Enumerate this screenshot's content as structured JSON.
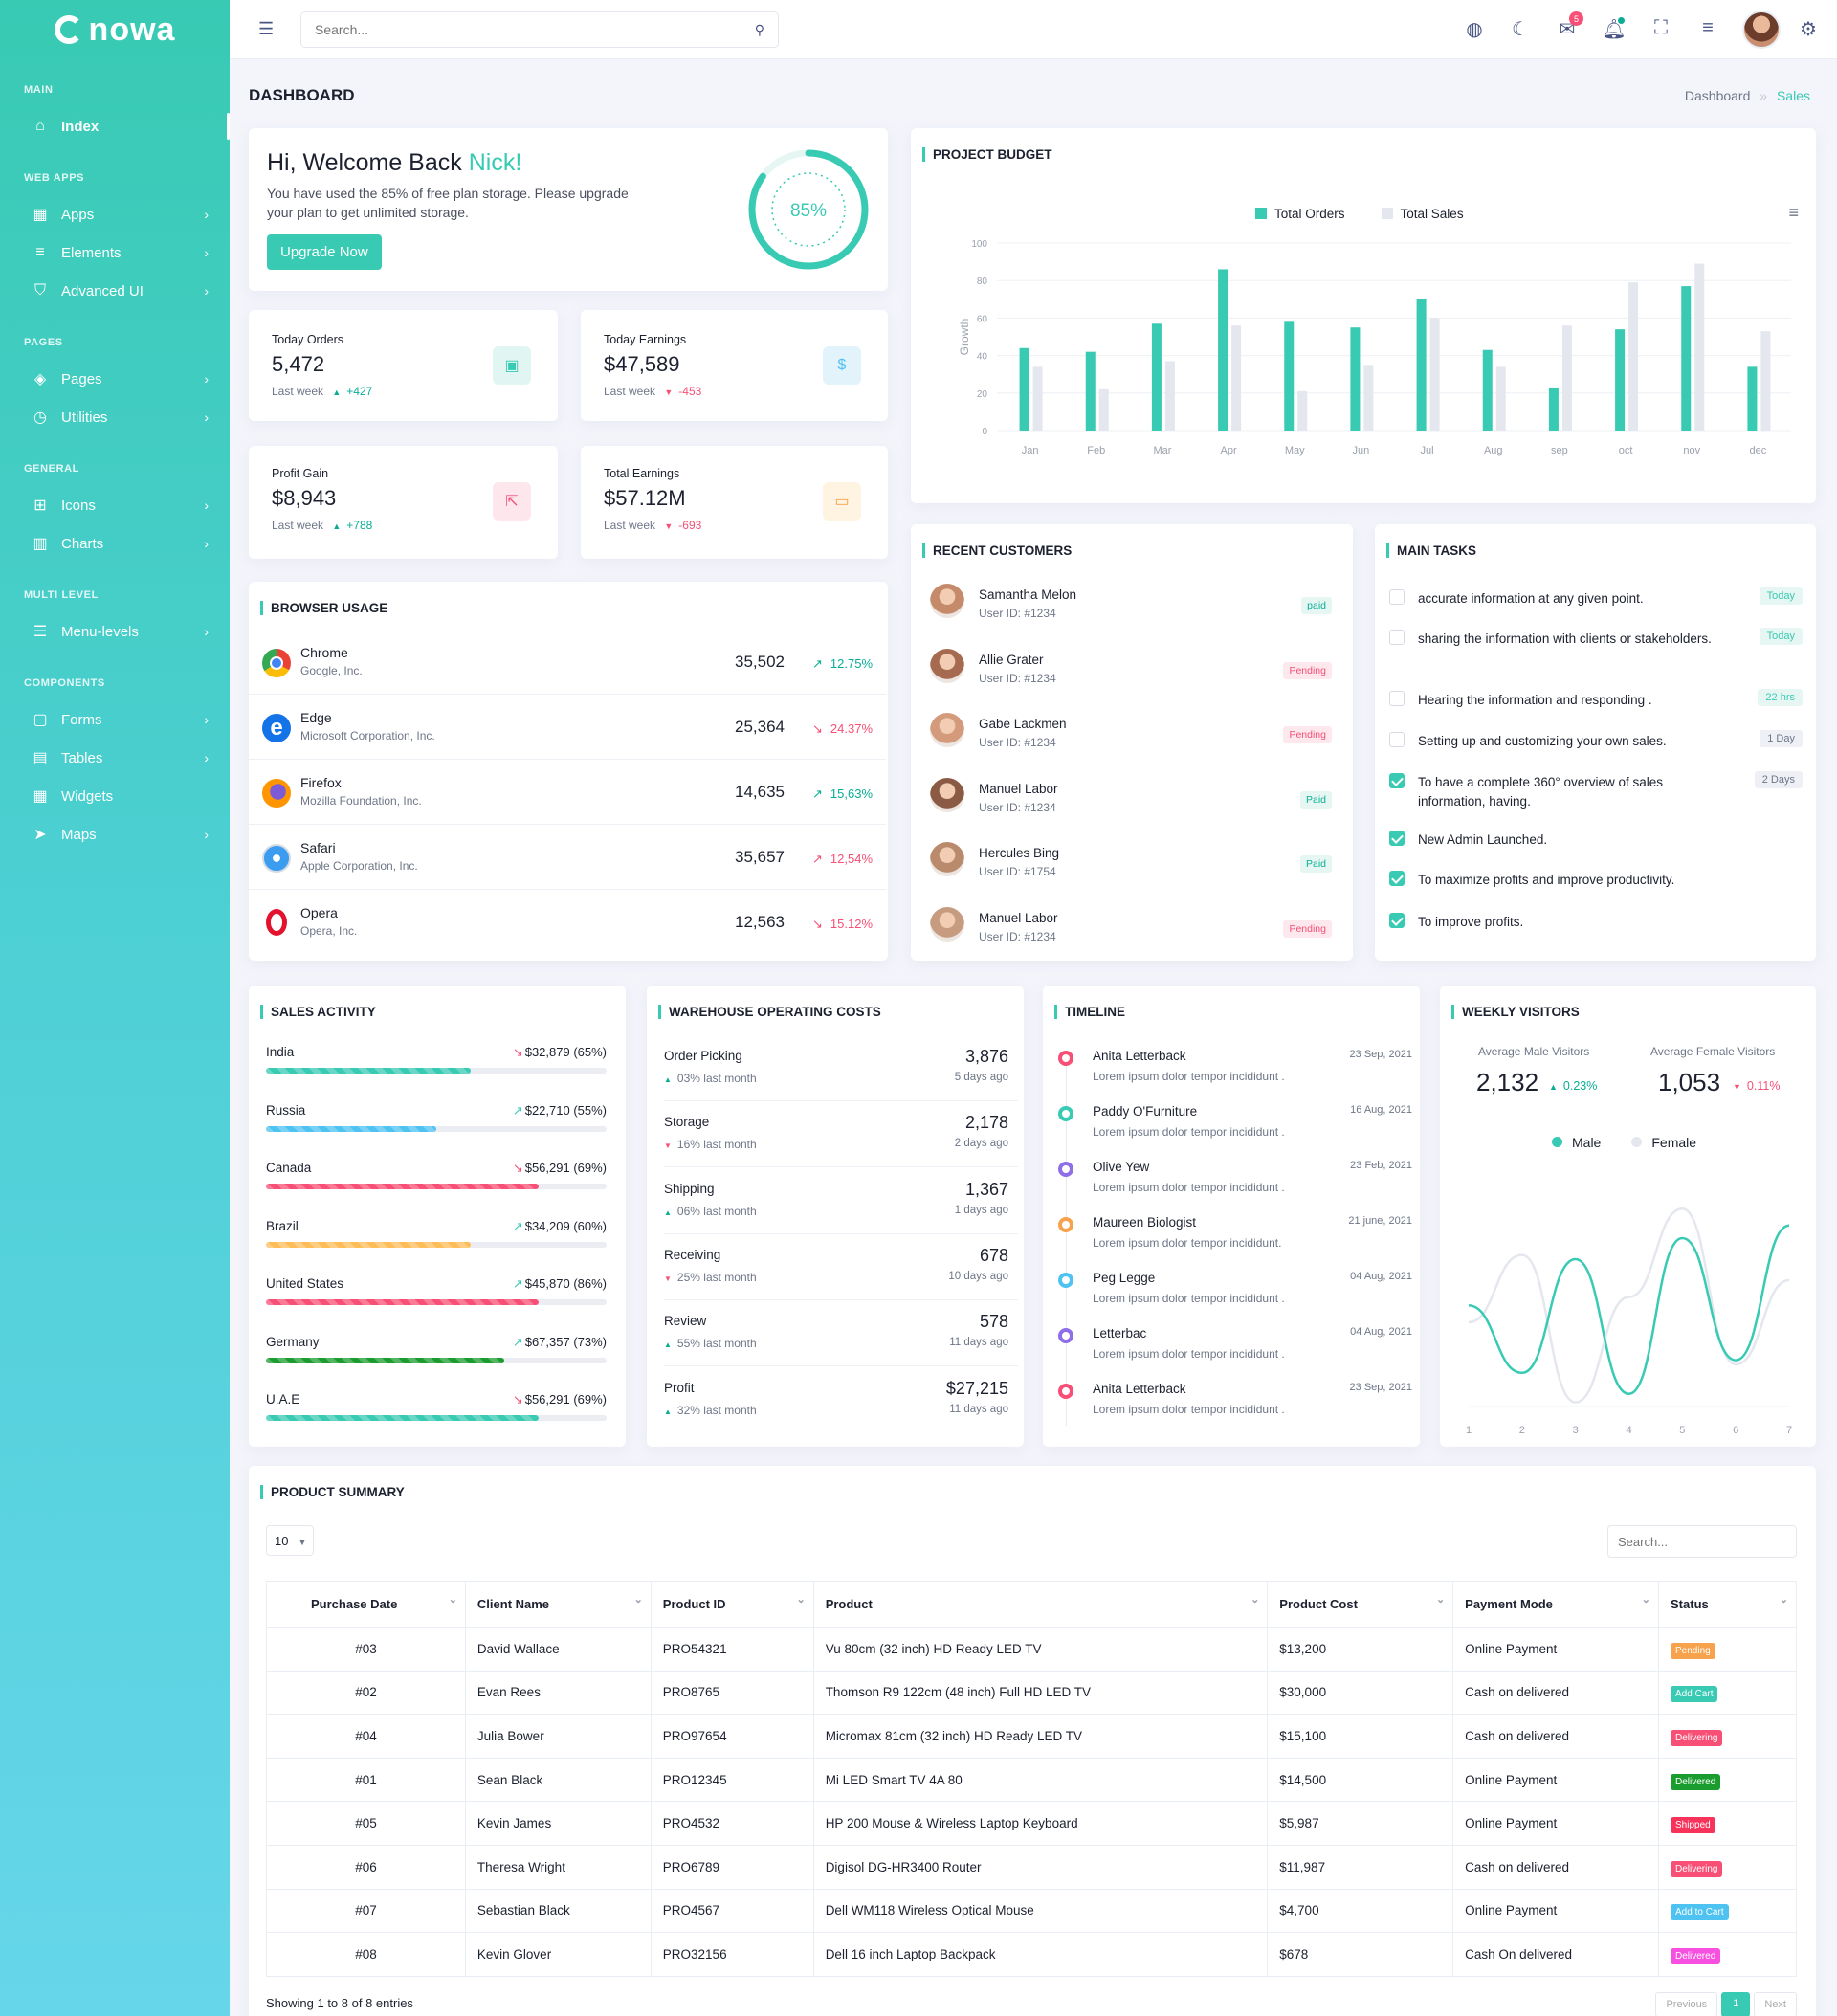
{
  "app": {
    "logo_text": "nowa"
  },
  "sidebar": {
    "categories": [
      "MAIN",
      "WEB APPS",
      "PAGES",
      "GENERAL",
      "MULTI LEVEL",
      "COMPONENTS"
    ],
    "items": [
      {
        "label": "Index"
      },
      {
        "label": "Apps"
      },
      {
        "label": "Elements"
      },
      {
        "label": "Advanced UI"
      },
      {
        "label": "Pages"
      },
      {
        "label": "Utilities"
      },
      {
        "label": "Icons"
      },
      {
        "label": "Charts"
      },
      {
        "label": "Menu-levels"
      },
      {
        "label": "Forms"
      },
      {
        "label": "Tables"
      },
      {
        "label": "Widgets"
      },
      {
        "label": "Maps"
      }
    ]
  },
  "header": {
    "search_placeholder": "Search...",
    "notification_count": "5"
  },
  "page": {
    "title": "DASHBOARD",
    "breadcrumb": [
      "Dashboard",
      "Sales"
    ]
  },
  "welcome": {
    "greeting": "Hi, Welcome Back ",
    "name": "Nick!",
    "message": "You have used the 85% of free plan storage. Please upgrade your plan to get unlimited storage.",
    "button": "Upgrade Now",
    "progress_label": "85%",
    "progress_value": 0.85
  },
  "stats": [
    {
      "label": "Today Orders",
      "value": "5,472",
      "period": "Last week",
      "change": "+427",
      "direction": "up"
    },
    {
      "label": "Today Earnings",
      "value": "$47,589",
      "period": "Last week",
      "change": "-453",
      "direction": "down"
    },
    {
      "label": "Profit Gain",
      "value": "$8,943",
      "period": "Last week",
      "change": "+788",
      "direction": "up"
    },
    {
      "label": "Total Earnings",
      "value": "$57.12M",
      "period": "Last week",
      "change": "-693",
      "direction": "down"
    }
  ],
  "browser_usage": {
    "title": "BROWSER USAGE",
    "rows": [
      {
        "name": "Chrome",
        "company": "Google, Inc.",
        "value": "35,502",
        "pct": "12.75%",
        "trend": "up"
      },
      {
        "name": "Edge",
        "company": "Microsoft Corporation, Inc.",
        "value": "25,364",
        "pct": "24.37%",
        "trend": "down"
      },
      {
        "name": "Firefox",
        "company": "Mozilla Foundation, Inc.",
        "value": "14,635",
        "pct": "15,63%",
        "trend": "up"
      },
      {
        "name": "Safari",
        "company": "Apple Corporation, Inc.",
        "value": "35,657",
        "pct": "12,54%",
        "trend": "up"
      },
      {
        "name": "Opera",
        "company": "Opera, Inc.",
        "value": "12,563",
        "pct": "15.12%",
        "trend": "down"
      }
    ]
  },
  "project_budget": {
    "title": "PROJECT BUDGET",
    "legend": [
      "Total Orders",
      "Total Sales"
    ],
    "ylabel": "Growth"
  },
  "chart_data": [
    {
      "type": "bar",
      "categories": [
        "Jan",
        "Feb",
        "Mar",
        "Apr",
        "May",
        "Jun",
        "Jul",
        "Aug",
        "sep",
        "oct",
        "nov",
        "dec"
      ],
      "series": [
        {
          "name": "Total Orders",
          "values": [
            44,
            42,
            57,
            86,
            58,
            55,
            70,
            43,
            23,
            54,
            77,
            34
          ]
        },
        {
          "name": "Total Sales",
          "values": [
            34,
            22,
            37,
            56,
            21,
            35,
            60,
            34,
            56,
            79,
            89,
            53
          ]
        }
      ],
      "ylabel": "Growth",
      "ylim": [
        0,
        100
      ],
      "yticks": [
        0,
        20,
        40,
        60,
        80,
        100
      ],
      "colors": [
        "#38cab3",
        "#e4e7ed"
      ],
      "legend_position": "top-center"
    },
    {
      "type": "line",
      "x": [
        1,
        2,
        3,
        4,
        5,
        6,
        7
      ],
      "series": [
        {
          "name": "Male",
          "values": [
            1.2,
            0.4,
            1.75,
            0.15,
            2.0,
            0.55,
            2.15
          ]
        },
        {
          "name": "Female",
          "values": [
            1.0,
            1.8,
            0.05,
            1.3,
            2.35,
            0.5,
            1.5
          ]
        }
      ],
      "colors": [
        "#38cab3",
        "#e4e7ed"
      ],
      "legend_position": "top-center"
    }
  ],
  "recent_customers": {
    "title": "RECENT CUSTOMERS",
    "rows": [
      {
        "name": "Samantha Melon",
        "uid": "User ID: #1234",
        "status": "paid",
        "kind": "paid"
      },
      {
        "name": "Allie Grater",
        "uid": "User ID: #1234",
        "status": "Pending",
        "kind": "pend"
      },
      {
        "name": "Gabe Lackmen",
        "uid": "User ID: #1234",
        "status": "Pending",
        "kind": "pend"
      },
      {
        "name": "Manuel Labor",
        "uid": "User ID: #1234",
        "status": "Paid",
        "kind": "paid"
      },
      {
        "name": "Hercules Bing",
        "uid": "User ID: #1754",
        "status": "Paid",
        "kind": "paid"
      },
      {
        "name": "Manuel Labor",
        "uid": "User ID: #1234",
        "status": "Pending",
        "kind": "pend"
      }
    ]
  },
  "main_tasks": {
    "title": "MAIN TASKS",
    "rows": [
      {
        "text": "accurate information at any given point.",
        "due": "Today",
        "checked": false,
        "green": true
      },
      {
        "text": "sharing the information with clients or stakeholders.",
        "due": "Today",
        "checked": false,
        "green": true
      },
      {
        "text": "Hearing the information and responding .",
        "due": "22 hrs",
        "checked": false,
        "green": true
      },
      {
        "text": "Setting up and customizing your own sales.",
        "due": "1 Day",
        "checked": false,
        "green": false
      },
      {
        "text": "To have a complete 360° overview of sales information, having.",
        "due": "2 Days",
        "checked": true,
        "green": false
      },
      {
        "text": "New Admin Launched.",
        "due": "",
        "checked": true,
        "green": false
      },
      {
        "text": "To maximize profits and improve productivity.",
        "due": "",
        "checked": true,
        "green": false
      },
      {
        "text": "To improve profits.",
        "due": "",
        "checked": true,
        "green": false
      }
    ]
  },
  "sales_activity": {
    "title": "SALES ACTIVITY",
    "rows": [
      {
        "country": "India",
        "value": "$32,879 (65%)",
        "pct": 0.6,
        "color": "#38cab3",
        "trend": "down"
      },
      {
        "country": "Russia",
        "value": "$22,710 (55%)",
        "pct": 0.5,
        "color": "#4ec2f0",
        "trend": "up"
      },
      {
        "country": "Canada",
        "value": "$56,291 (69%)",
        "pct": 0.8,
        "color": "#f74f75",
        "trend": "down"
      },
      {
        "country": "Brazil",
        "value": "$34,209 (60%)",
        "pct": 0.6,
        "color": "#ffbd5a",
        "trend": "up"
      },
      {
        "country": "United States",
        "value": "$45,870 (86%)",
        "pct": 0.8,
        "color": "#f74f75",
        "trend": "up"
      },
      {
        "country": "Germany",
        "value": "$67,357 (73%)",
        "pct": 0.7,
        "color": "#1a9c2e",
        "trend": "up"
      },
      {
        "country": "U.A.E",
        "value": "$56,291 (69%)",
        "pct": 0.8,
        "color": "#38cab3",
        "trend": "down"
      }
    ]
  },
  "warehouse": {
    "title": "WAREHOUSE OPERATING COSTS",
    "rows": [
      {
        "name": "Order Picking",
        "sub": "03% last month",
        "trend": "up",
        "value": "3,876",
        "ago": "5 days ago"
      },
      {
        "name": "Storage",
        "sub": "16% last month",
        "trend": "down",
        "value": "2,178",
        "ago": "2 days ago"
      },
      {
        "name": "Shipping",
        "sub": "06% last month",
        "trend": "up",
        "value": "1,367",
        "ago": "1 days ago"
      },
      {
        "name": "Receiving",
        "sub": "25% last month",
        "trend": "down",
        "value": "678",
        "ago": "10 days ago"
      },
      {
        "name": "Review",
        "sub": "55% last month",
        "trend": "up",
        "value": "578",
        "ago": "11 days ago"
      },
      {
        "name": "Profit",
        "sub": "32% last month",
        "trend": "up",
        "value": "$27,215",
        "ago": "11 days ago"
      }
    ]
  },
  "timeline": {
    "title": "TIMELINE",
    "rows": [
      {
        "name": "Anita Letterback",
        "desc": "Lorem ipsum dolor tempor incididunt .",
        "date": "23 Sep, 2021",
        "color": "#f74f75"
      },
      {
        "name": "Paddy O'Furniture",
        "desc": "Lorem ipsum dolor tempor incididunt .",
        "date": "16 Aug, 2021",
        "color": "#38cab3"
      },
      {
        "name": "Olive Yew",
        "desc": "Lorem ipsum dolor tempor incididunt .",
        "date": "23 Feb, 2021",
        "color": "#8f6ee8"
      },
      {
        "name": "Maureen Biologist",
        "desc": "Lorem ipsum dolor tempor incididunt.",
        "date": "21 june, 2021",
        "color": "#f7a24d"
      },
      {
        "name": "Peg Legge",
        "desc": "Lorem ipsum dolor tempor incididunt .",
        "date": "04 Aug, 2021",
        "color": "#4ec2f0"
      },
      {
        "name": "Letterbac",
        "desc": "Lorem ipsum dolor tempor incididunt .",
        "date": "04 Aug, 2021",
        "color": "#8f6ee8"
      },
      {
        "name": "Anita Letterback",
        "desc": "Lorem ipsum dolor tempor incididunt .",
        "date": "23 Sep, 2021",
        "color": "#f74f75"
      }
    ]
  },
  "weekly_visitors": {
    "title": "WEEKLY VISITORS",
    "male_label": "Average Male Visitors",
    "male_value": "2,132",
    "male_change": "0.23%",
    "female_label": "Average Female Visitors",
    "female_value": "1,053",
    "female_change": "0.11%",
    "legend": [
      "Male",
      "Female"
    ]
  },
  "product_summary": {
    "title": "PRODUCT SUMMARY",
    "page_size": "10",
    "search_placeholder": "Search...",
    "columns": [
      "Purchase Date",
      "Client Name",
      "Product ID",
      "Product",
      "Product Cost",
      "Payment Mode",
      "Status"
    ],
    "rows": [
      {
        "date": "#03",
        "client": "David Wallace",
        "pid": "PRO54321",
        "product": "Vu 80cm (32 inch) HD Ready LED TV",
        "cost": "$13,200",
        "mode": "Online Payment",
        "status": "Pending",
        "color": "#f7a24d"
      },
      {
        "date": "#02",
        "client": "Evan Rees",
        "pid": "PRO8765",
        "product": "Thomson R9 122cm (48 inch) Full HD LED TV",
        "cost": "$30,000",
        "mode": "Cash on delivered",
        "status": "Add Cart",
        "color": "#38cab3"
      },
      {
        "date": "#04",
        "client": "Julia Bower",
        "pid": "PRO97654",
        "product": "Micromax 81cm (32 inch) HD Ready LED TV",
        "cost": "$15,100",
        "mode": "Cash on delivered",
        "status": "Delivering",
        "color": "#f74f75"
      },
      {
        "date": "#01",
        "client": "Sean Black",
        "pid": "PRO12345",
        "product": "Mi LED Smart TV 4A 80",
        "cost": "$14,500",
        "mode": "Online Payment",
        "status": "Delivered",
        "color": "#1a9c2e"
      },
      {
        "date": "#05",
        "client": "Kevin James",
        "pid": "PRO4532",
        "product": "HP 200 Mouse & Wireless Laptop Keyboard",
        "cost": "$5,987",
        "mode": "Online Payment",
        "status": "Shipped",
        "color": "#f7335c"
      },
      {
        "date": "#06",
        "client": "Theresa Wright",
        "pid": "PRO6789",
        "product": "Digisol DG-HR3400 Router",
        "cost": "$11,987",
        "mode": "Cash on delivered",
        "status": "Delivering",
        "color": "#f74f75"
      },
      {
        "date": "#07",
        "client": "Sebastian Black",
        "pid": "PRO4567",
        "product": "Dell WM118 Wireless Optical Mouse",
        "cost": "$4,700",
        "mode": "Online Payment",
        "status": "Add to Cart",
        "color": "#4ec2f0"
      },
      {
        "date": "#08",
        "client": "Kevin Glover",
        "pid": "PRO32156",
        "product": "Dell 16 inch Laptop Backpack",
        "cost": "$678",
        "mode": "Cash On delivered",
        "status": "Delivered",
        "color": "#f74fe0"
      }
    ],
    "footer": "Showing 1 to 8 of 8 entries",
    "pagination": [
      "Previous",
      "1",
      "Next"
    ]
  }
}
